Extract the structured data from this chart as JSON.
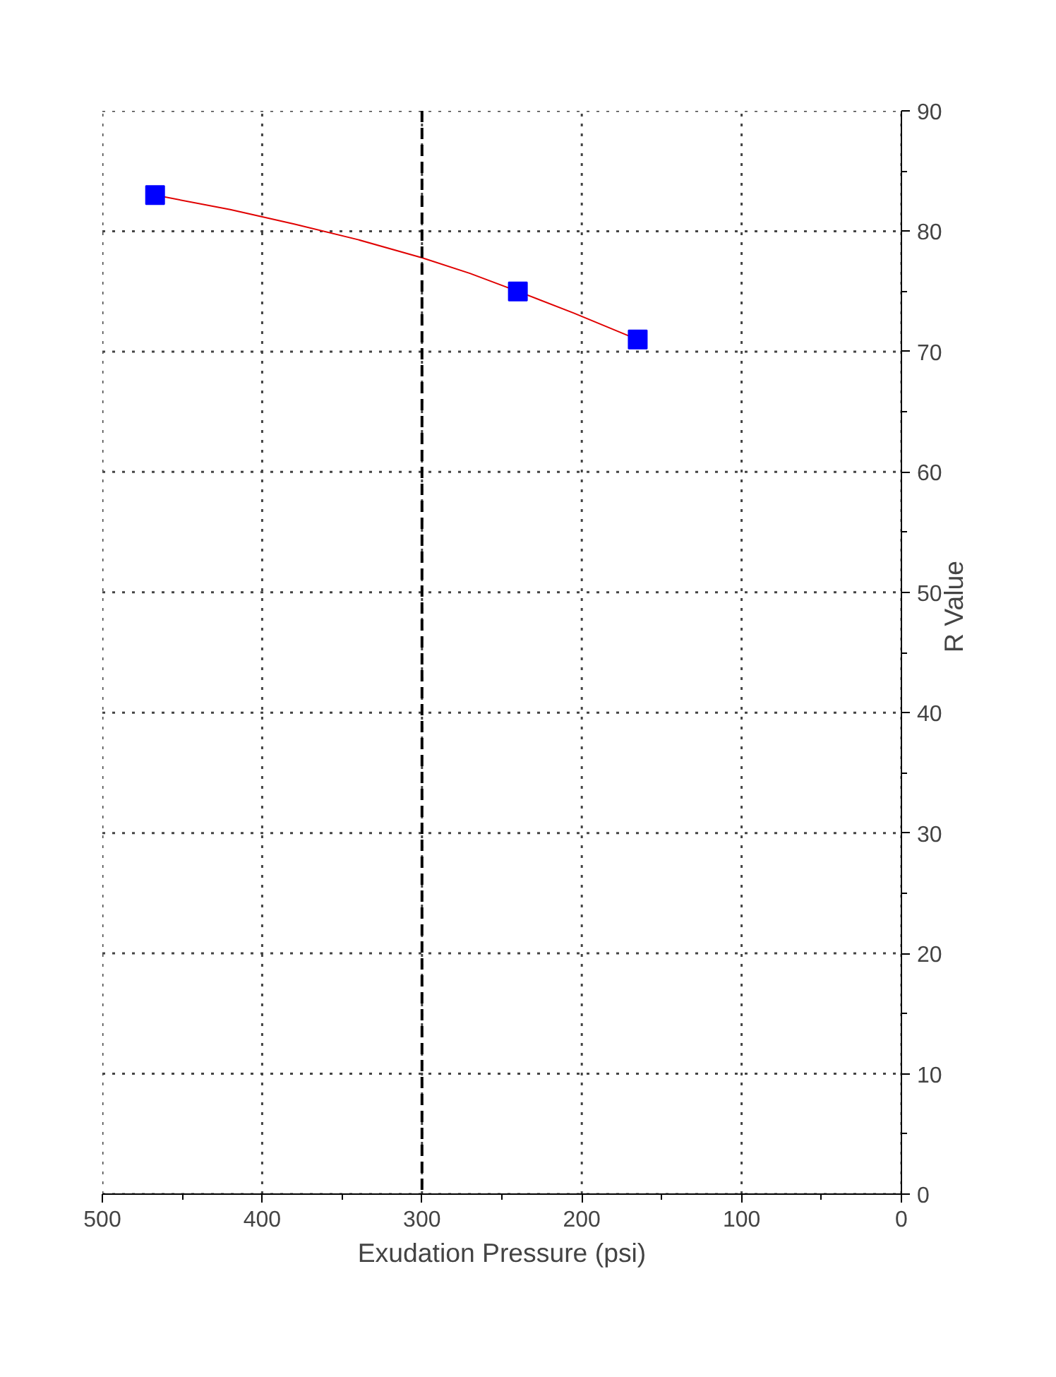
{
  "chart_data": {
    "type": "scatter",
    "xlabel": "Exudation Pressure (psi)",
    "ylabel": "R Value",
    "xlim": [
      500,
      0
    ],
    "xticks": [
      500,
      400,
      300,
      200,
      100,
      0
    ],
    "ylim": [
      0,
      90
    ],
    "yticks": [
      0,
      10,
      20,
      30,
      40,
      50,
      60,
      70,
      80,
      90
    ],
    "grid": true,
    "marker": "square",
    "series": [
      {
        "type": "line",
        "color": "#e00000",
        "x": [
          467,
          420,
          380,
          340,
          300,
          270,
          240,
          205,
          165
        ],
        "values": [
          83,
          81.8,
          80.6,
          79.3,
          77.8,
          76.5,
          75,
          73.2,
          71
        ],
        "marker": "none"
      },
      {
        "color": "#0000ff",
        "x": [
          467,
          240,
          165
        ],
        "values": [
          83,
          75,
          71
        ]
      }
    ],
    "ref_lines": [
      {
        "axis": "x",
        "value": 300,
        "color": "#000000",
        "line_style": "dashed"
      }
    ]
  }
}
